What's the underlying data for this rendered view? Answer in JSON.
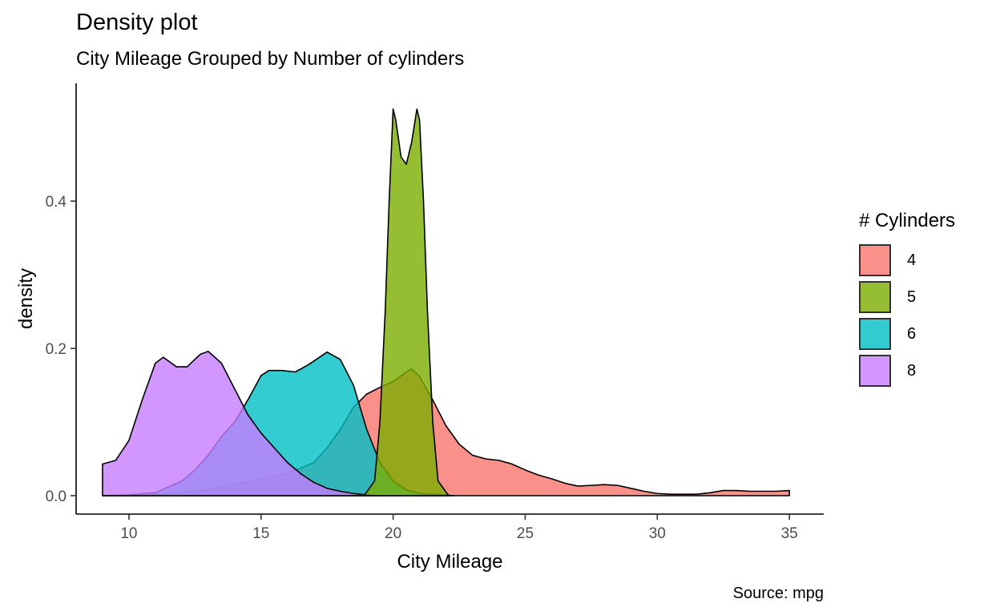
{
  "chart_data": {
    "type": "area",
    "title": "Density plot",
    "subtitle": "City Mileage Grouped by Number of cylinders",
    "xlabel": "City Mileage",
    "ylabel": "density",
    "caption": "Source: mpg",
    "xlim": [
      8,
      36.3
    ],
    "ylim": [
      -0.025,
      0.56
    ],
    "xticks": [
      10,
      15,
      20,
      25,
      30,
      35
    ],
    "yticks": [
      0.0,
      0.2,
      0.4
    ],
    "ytick_labels": [
      "0.0",
      "0.2",
      "0.4"
    ],
    "grid": false,
    "legend": {
      "title": "# Cylinders",
      "position": "right"
    },
    "series": [
      {
        "name": "4",
        "color": "#F8766D",
        "points": [
          [
            9,
            0
          ],
          [
            10,
            0.001
          ],
          [
            11,
            0.002
          ],
          [
            12,
            0.004
          ],
          [
            13,
            0.008
          ],
          [
            14,
            0.015
          ],
          [
            15,
            0.022
          ],
          [
            16,
            0.03
          ],
          [
            17,
            0.045
          ],
          [
            17.5,
            0.065
          ],
          [
            18,
            0.09
          ],
          [
            18.5,
            0.12
          ],
          [
            19,
            0.138
          ],
          [
            19.5,
            0.147
          ],
          [
            20,
            0.155
          ],
          [
            20.5,
            0.168
          ],
          [
            20.7,
            0.172
          ],
          [
            21,
            0.162
          ],
          [
            21.5,
            0.13
          ],
          [
            22,
            0.095
          ],
          [
            22.5,
            0.07
          ],
          [
            23,
            0.055
          ],
          [
            23.5,
            0.05
          ],
          [
            24,
            0.048
          ],
          [
            24.5,
            0.043
          ],
          [
            25,
            0.035
          ],
          [
            25.5,
            0.028
          ],
          [
            26,
            0.023
          ],
          [
            26.5,
            0.017
          ],
          [
            27,
            0.013
          ],
          [
            27.5,
            0.014
          ],
          [
            28,
            0.015
          ],
          [
            28.5,
            0.014
          ],
          [
            29,
            0.01
          ],
          [
            29.5,
            0.006
          ],
          [
            30,
            0.003
          ],
          [
            30.5,
            0.002
          ],
          [
            31,
            0.002
          ],
          [
            31.5,
            0.002
          ],
          [
            32,
            0.004
          ],
          [
            32.5,
            0.007
          ],
          [
            33,
            0.007
          ],
          [
            33.5,
            0.006
          ],
          [
            34,
            0.006
          ],
          [
            34.5,
            0.006
          ],
          [
            35,
            0.007
          ],
          [
            35,
            0
          ]
        ]
      },
      {
        "name": "5",
        "color": "#7CAE00",
        "points": [
          [
            18.9,
            0
          ],
          [
            19.3,
            0.02
          ],
          [
            19.5,
            0.1
          ],
          [
            19.7,
            0.25
          ],
          [
            19.85,
            0.4
          ],
          [
            20,
            0.525
          ],
          [
            20.1,
            0.51
          ],
          [
            20.3,
            0.46
          ],
          [
            20.5,
            0.45
          ],
          [
            20.7,
            0.48
          ],
          [
            20.9,
            0.525
          ],
          [
            21,
            0.51
          ],
          [
            21.15,
            0.4
          ],
          [
            21.3,
            0.25
          ],
          [
            21.5,
            0.1
          ],
          [
            21.7,
            0.02
          ],
          [
            22.1,
            0
          ]
        ]
      },
      {
        "name": "6",
        "color": "#00BFC4",
        "points": [
          [
            9,
            0
          ],
          [
            10,
            0.001
          ],
          [
            11,
            0.004
          ],
          [
            12,
            0.02
          ],
          [
            12.5,
            0.035
          ],
          [
            13,
            0.055
          ],
          [
            13.5,
            0.08
          ],
          [
            14,
            0.1
          ],
          [
            14.5,
            0.13
          ],
          [
            15,
            0.163
          ],
          [
            15.3,
            0.17
          ],
          [
            15.8,
            0.17
          ],
          [
            16.3,
            0.168
          ],
          [
            16.8,
            0.178
          ],
          [
            17.5,
            0.195
          ],
          [
            18,
            0.185
          ],
          [
            18.5,
            0.15
          ],
          [
            19,
            0.09
          ],
          [
            19.5,
            0.045
          ],
          [
            20,
            0.02
          ],
          [
            20.5,
            0.008
          ],
          [
            21,
            0.003
          ],
          [
            22,
            0.001
          ],
          [
            22.3,
            0
          ]
        ]
      },
      {
        "name": "8",
        "color": "#C77CFF",
        "points": [
          [
            9,
            0
          ],
          [
            9,
            0.043
          ],
          [
            9.5,
            0.048
          ],
          [
            10,
            0.075
          ],
          [
            10.5,
            0.13
          ],
          [
            11,
            0.18
          ],
          [
            11.3,
            0.188
          ],
          [
            11.8,
            0.175
          ],
          [
            12.2,
            0.175
          ],
          [
            12.7,
            0.192
          ],
          [
            13,
            0.196
          ],
          [
            13.5,
            0.18
          ],
          [
            14,
            0.145
          ],
          [
            14.5,
            0.11
          ],
          [
            15,
            0.085
          ],
          [
            15.5,
            0.065
          ],
          [
            16,
            0.045
          ],
          [
            16.5,
            0.03
          ],
          [
            17,
            0.018
          ],
          [
            17.5,
            0.01
          ],
          [
            18,
            0.006
          ],
          [
            18.5,
            0.003
          ],
          [
            19,
            0.001
          ],
          [
            19.5,
            0
          ]
        ]
      }
    ],
    "draw_order": [
      "4",
      "6",
      "8",
      "5"
    ],
    "fill_opacity": 0.8
  }
}
